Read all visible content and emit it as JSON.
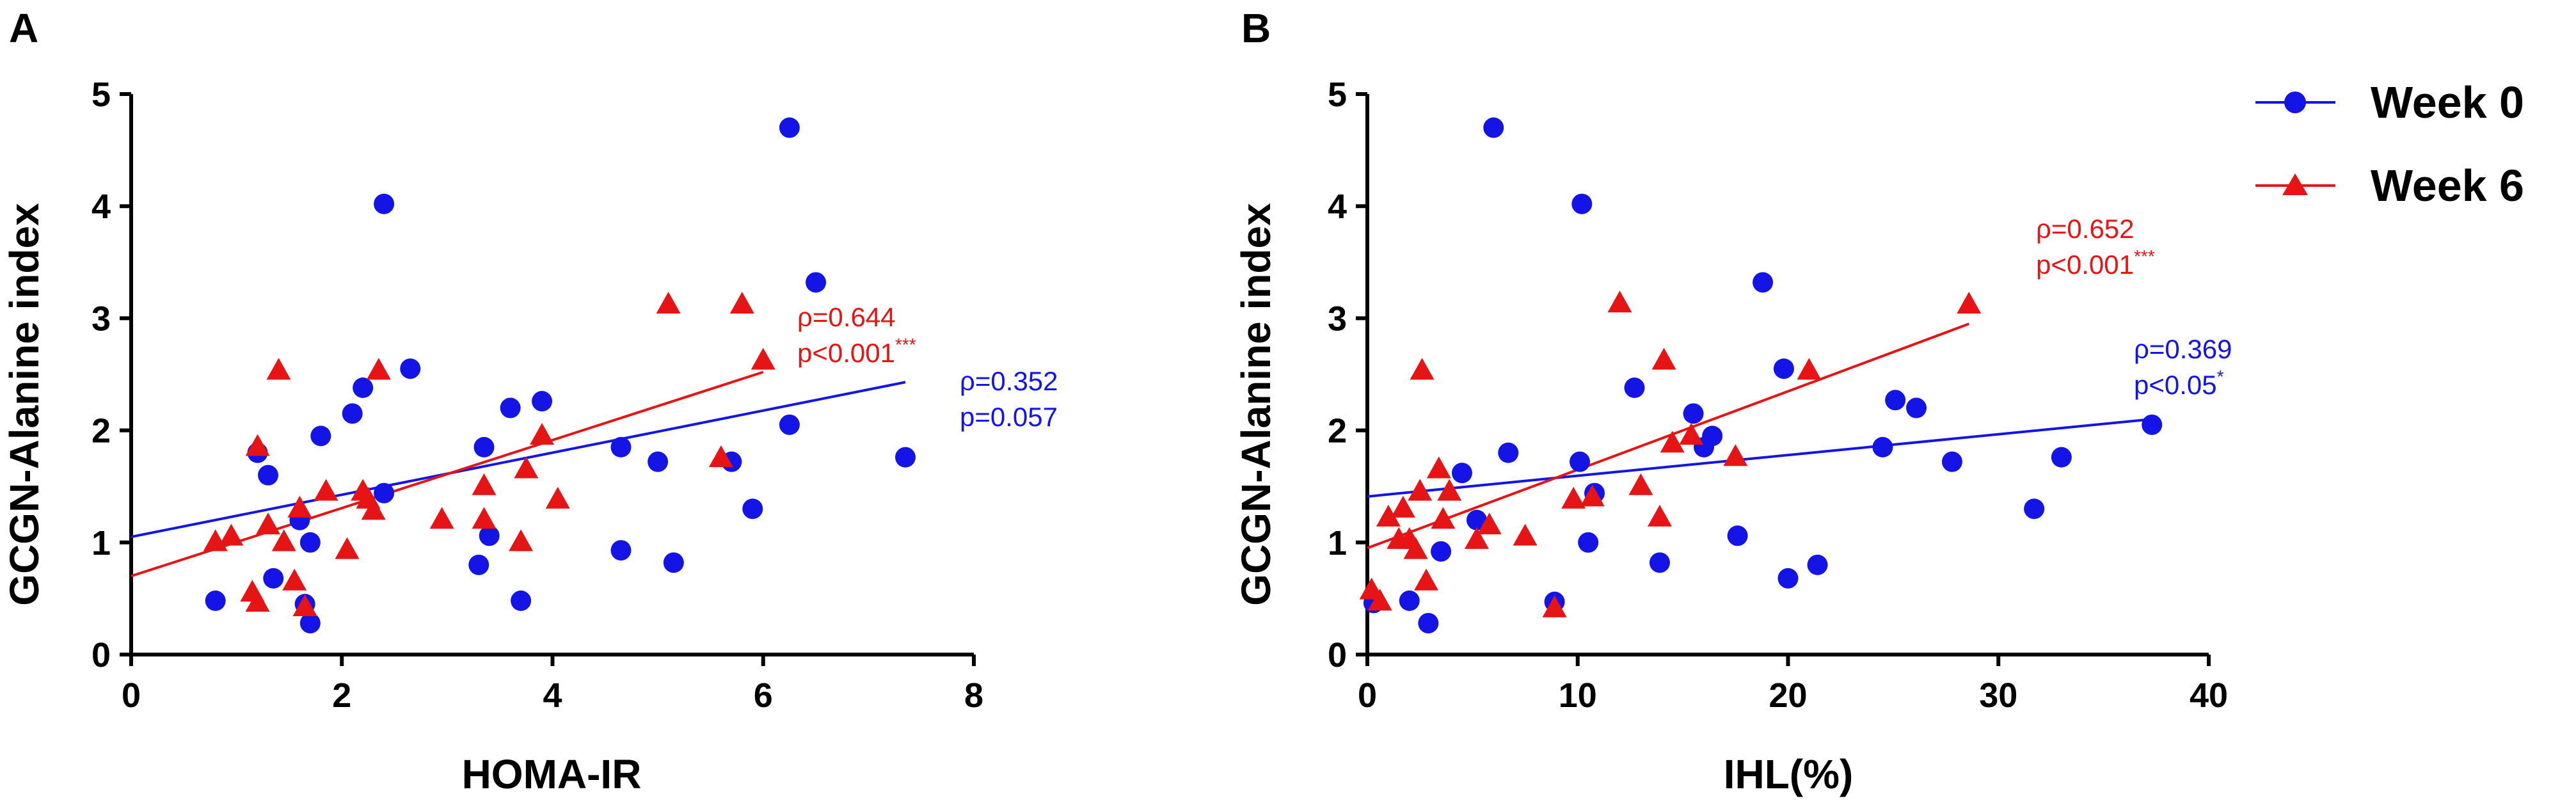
{
  "chart_data": [
    {
      "type": "scatter",
      "panel": "A",
      "xlabel": "HOMA-IR",
      "ylabel": "GCGN-Alanine index",
      "xlim": [
        0,
        8
      ],
      "ylim": [
        0,
        5
      ],
      "xticks": [
        0,
        2,
        4,
        6,
        8
      ],
      "yticks": [
        0,
        1,
        2,
        3,
        4,
        5
      ],
      "series": [
        {
          "name": "Week 0",
          "color": "#1414e6",
          "marker": "circle",
          "x": [
            0.8,
            1.2,
            1.3,
            1.35,
            1.6,
            1.65,
            1.7,
            1.7,
            1.8,
            2.1,
            2.2,
            2.4,
            2.4,
            2.65,
            3.3,
            3.35,
            3.4,
            3.6,
            3.7,
            3.9,
            4.65,
            4.65,
            5.0,
            5.15,
            5.7,
            5.9,
            6.25,
            6.25,
            6.5,
            7.35
          ],
          "y": [
            0.48,
            1.8,
            1.6,
            0.68,
            1.2,
            0.45,
            1.0,
            0.28,
            1.95,
            2.15,
            2.38,
            4.02,
            1.44,
            2.55,
            0.8,
            1.85,
            1.06,
            2.2,
            0.48,
            2.26,
            1.85,
            0.93,
            1.72,
            0.82,
            1.72,
            1.3,
            4.7,
            2.05,
            3.32,
            1.76
          ],
          "fit": {
            "x": [
              0,
              7.35
            ],
            "y": [
              1.05,
              2.43
            ]
          }
        },
        {
          "name": "Week 6",
          "color": "#e61414",
          "marker": "triangle",
          "x": [
            0.8,
            0.95,
            1.15,
            1.2,
            1.2,
            1.3,
            1.4,
            1.45,
            1.55,
            1.6,
            1.65,
            1.85,
            2.05,
            2.2,
            2.25,
            2.3,
            2.35,
            2.95,
            3.35,
            3.35,
            3.7,
            3.75,
            3.9,
            4.05,
            5.1,
            5.6,
            5.8,
            6.0
          ],
          "y": [
            1.0,
            1.05,
            0.55,
            1.85,
            0.46,
            1.15,
            2.53,
            1.0,
            0.65,
            1.3,
            0.42,
            1.45,
            0.93,
            1.45,
            1.38,
            1.28,
            2.53,
            1.2,
            1.5,
            1.2,
            1.0,
            1.65,
            1.95,
            1.38,
            3.12,
            1.75,
            3.12,
            2.62
          ],
          "fit": {
            "x": [
              0,
              6.0
            ],
            "y": [
              0.7,
              2.52
            ]
          }
        }
      ],
      "annotations": [
        {
          "series": "Week 6",
          "rho": "ρ=0.644",
          "p": "p<0.001",
          "sig": "***"
        },
        {
          "series": "Week 0",
          "rho": "ρ=0.352",
          "p": "p=0.057",
          "sig": ""
        }
      ]
    },
    {
      "type": "scatter",
      "panel": "B",
      "xlabel": "IHL(%)",
      "ylabel": "GCGN-Alanine index",
      "xlim": [
        0,
        40
      ],
      "ylim": [
        0,
        5
      ],
      "xticks": [
        0,
        10,
        20,
        30,
        40
      ],
      "yticks": [
        0,
        1,
        2,
        3,
        4,
        5
      ],
      "series": [
        {
          "name": "Week 0",
          "color": "#1414e6",
          "marker": "circle",
          "x": [
            0.3,
            2.0,
            2.9,
            3.5,
            4.5,
            5.2,
            6.0,
            6.7,
            8.9,
            10.1,
            10.2,
            10.5,
            10.8,
            12.7,
            13.9,
            15.5,
            16.0,
            16.4,
            17.6,
            18.8,
            19.8,
            20.0,
            21.4,
            24.5,
            25.1,
            26.1,
            27.8,
            31.7,
            33.0,
            37.3
          ],
          "y": [
            0.46,
            0.48,
            0.28,
            0.92,
            1.62,
            1.2,
            4.7,
            1.8,
            0.47,
            1.72,
            4.02,
            1.0,
            1.44,
            2.38,
            0.82,
            2.15,
            1.85,
            1.95,
            1.06,
            3.32,
            2.55,
            0.68,
            0.8,
            1.85,
            2.27,
            2.2,
            1.72,
            1.3,
            1.76,
            2.05
          ],
          "fit": {
            "x": [
              0,
              37.3
            ],
            "y": [
              1.41,
              2.1
            ]
          }
        },
        {
          "name": "Week 6",
          "color": "#e61414",
          "marker": "triangle",
          "x": [
            0.2,
            0.6,
            1.0,
            1.5,
            1.7,
            2.0,
            2.3,
            2.5,
            2.6,
            2.8,
            3.4,
            3.6,
            3.9,
            5.2,
            5.8,
            7.5,
            8.9,
            9.8,
            10.7,
            12.0,
            13.0,
            13.9,
            14.1,
            14.5,
            15.4,
            17.5,
            21.0,
            28.6
          ],
          "y": [
            0.57,
            0.47,
            1.22,
            1.02,
            1.3,
            1.02,
            0.93,
            1.45,
            2.53,
            0.65,
            1.65,
            1.2,
            1.45,
            1.02,
            1.15,
            1.05,
            0.41,
            1.38,
            1.4,
            3.13,
            1.5,
            1.22,
            2.62,
            1.88,
            1.95,
            1.76,
            2.53,
            3.12
          ],
          "fit": {
            "x": [
              0,
              28.6
            ],
            "y": [
              0.95,
              2.95
            ]
          }
        }
      ],
      "annotations": [
        {
          "series": "Week 6",
          "rho": "ρ=0.652",
          "p": "p<0.001",
          "sig": "***"
        },
        {
          "series": "Week 0",
          "rho": "ρ=0.369",
          "p": "p<0.05",
          "sig": "*"
        }
      ]
    }
  ],
  "legend": {
    "items": [
      {
        "label": "Week 0",
        "color": "#1414e6",
        "marker": "circle"
      },
      {
        "label": "Week 6",
        "color": "#e61414",
        "marker": "triangle"
      }
    ]
  }
}
